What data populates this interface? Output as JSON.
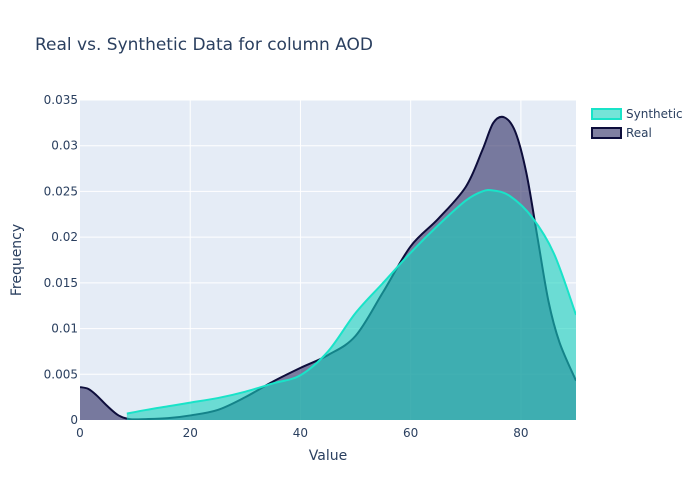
{
  "chart_data": {
    "type": "area",
    "title": "Real vs. Synthetic Data for column AOD",
    "xlabel": "Value",
    "ylabel": "Frequency",
    "xlim": [
      0,
      90
    ],
    "ylim": [
      0,
      0.035
    ],
    "x_ticks": [
      "0",
      "20",
      "40",
      "60",
      "80"
    ],
    "y_ticks": [
      "0",
      "0.005",
      "0.01",
      "0.015",
      "0.02",
      "0.025",
      "0.03",
      "0.035"
    ],
    "grid": true,
    "legend_position": "top-right",
    "series": [
      {
        "name": "Synthetic",
        "line_color": "#19e3c8",
        "fill_color": "rgba(25,210,190,0.6)",
        "points": [
          [
            8.5,
            0.0007
          ],
          [
            12,
            0.0011
          ],
          [
            16,
            0.0015
          ],
          [
            20,
            0.0019
          ],
          [
            25,
            0.0024
          ],
          [
            30,
            0.0031
          ],
          [
            35,
            0.004
          ],
          [
            40,
            0.0049
          ],
          [
            45,
            0.0075
          ],
          [
            50,
            0.0117
          ],
          [
            55,
            0.015
          ],
          [
            60,
            0.0183
          ],
          [
            65,
            0.0213
          ],
          [
            70,
            0.024
          ],
          [
            73,
            0.025
          ],
          [
            75,
            0.0251
          ],
          [
            78,
            0.0245
          ],
          [
            82,
            0.0222
          ],
          [
            86,
            0.0182
          ],
          [
            90,
            0.0115
          ]
        ]
      },
      {
        "name": "Real",
        "line_color": "#0d0d3b",
        "fill_color": "rgba(60,60,110,0.65)",
        "points": [
          [
            0,
            0.0036
          ],
          [
            1.5,
            0.0034
          ],
          [
            3,
            0.0027
          ],
          [
            5,
            0.0015
          ],
          [
            7,
            0.0005
          ],
          [
            9,
            0.0001
          ],
          [
            12,
            0.0001
          ],
          [
            16,
            0.0002
          ],
          [
            20,
            0.0005
          ],
          [
            25,
            0.0011
          ],
          [
            30,
            0.0025
          ],
          [
            35,
            0.0042
          ],
          [
            40,
            0.0057
          ],
          [
            45,
            0.0071
          ],
          [
            50,
            0.0092
          ],
          [
            55,
            0.014
          ],
          [
            60,
            0.019
          ],
          [
            65,
            0.022
          ],
          [
            70,
            0.0255
          ],
          [
            73,
            0.0295
          ],
          [
            75,
            0.0325
          ],
          [
            77,
            0.0331
          ],
          [
            79,
            0.0315
          ],
          [
            81,
            0.027
          ],
          [
            83,
            0.02
          ],
          [
            85,
            0.013
          ],
          [
            87,
            0.0085
          ],
          [
            90,
            0.0043
          ]
        ]
      }
    ]
  }
}
